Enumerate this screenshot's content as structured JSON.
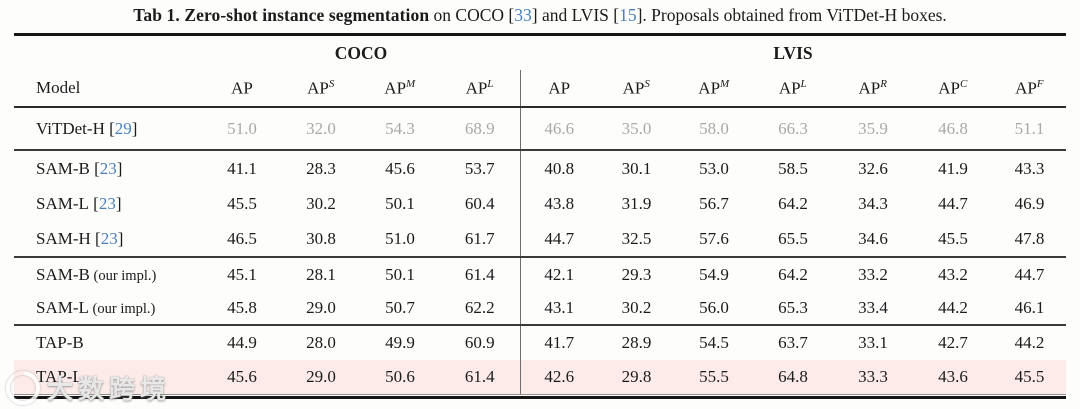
{
  "caption": {
    "bold": "Tab 1. Zero-shot instance segmentation",
    "seg1": " on COCO ",
    "cite1": "33",
    "seg2": " and LVIS ",
    "cite2": "15",
    "seg3": ". Proposals obtained from ViTDet-H boxes."
  },
  "table": {
    "brackets": {
      "open": "[",
      "close": "]"
    },
    "model_header": "Model",
    "groups": [
      {
        "label": "COCO",
        "span": 4
      },
      {
        "label": "LVIS",
        "span": 7
      }
    ],
    "columns": [
      {
        "base": "AP",
        "sup": ""
      },
      {
        "base": "AP",
        "sup": "S"
      },
      {
        "base": "AP",
        "sup": "M"
      },
      {
        "base": "AP",
        "sup": "L"
      },
      {
        "base": "AP",
        "sup": ""
      },
      {
        "base": "AP",
        "sup": "S"
      },
      {
        "base": "AP",
        "sup": "M"
      },
      {
        "base": "AP",
        "sup": "L"
      },
      {
        "base": "AP",
        "sup": "R"
      },
      {
        "base": "AP",
        "sup": "C"
      },
      {
        "base": "AP",
        "sup": "F"
      }
    ],
    "row_groups": [
      {
        "rows": [
          {
            "model": "ViTDet-H",
            "cite": "29",
            "muted": true,
            "values": [
              "51.0",
              "32.0",
              "54.3",
              "68.9",
              "46.6",
              "35.0",
              "58.0",
              "66.3",
              "35.9",
              "46.8",
              "51.1"
            ]
          }
        ]
      },
      {
        "rows": [
          {
            "model": "SAM-B",
            "cite": "23",
            "values": [
              "41.1",
              "28.3",
              "45.6",
              "53.7",
              "40.8",
              "30.1",
              "53.0",
              "58.5",
              "32.6",
              "41.9",
              "43.3"
            ]
          },
          {
            "model": "SAM-L",
            "cite": "23",
            "values": [
              "45.5",
              "30.2",
              "50.1",
              "60.4",
              "43.8",
              "31.9",
              "56.7",
              "64.2",
              "34.3",
              "44.7",
              "46.9"
            ]
          },
          {
            "model": "SAM-H",
            "cite": "23",
            "values": [
              "46.5",
              "30.8",
              "51.0",
              "61.7",
              "44.7",
              "32.5",
              "57.6",
              "65.5",
              "34.6",
              "45.5",
              "47.8"
            ]
          }
        ]
      },
      {
        "rows": [
          {
            "model": "SAM-B",
            "suffix": " (our impl.)",
            "values": [
              "45.1",
              "28.1",
              "50.1",
              "61.4",
              "42.1",
              "29.3",
              "54.9",
              "64.2",
              "33.2",
              "43.2",
              "44.7"
            ]
          },
          {
            "model": "SAM-L",
            "suffix": " (our impl.)",
            "values": [
              "45.8",
              "29.0",
              "50.7",
              "62.2",
              "43.1",
              "30.2",
              "56.0",
              "65.3",
              "33.4",
              "44.2",
              "46.1"
            ]
          }
        ]
      },
      {
        "rows": [
          {
            "model": "TAP-B",
            "values": [
              "44.9",
              "28.0",
              "49.9",
              "60.9",
              "41.7",
              "28.9",
              "54.5",
              "63.7",
              "33.1",
              "42.7",
              "44.2"
            ]
          },
          {
            "model": "TAP-L",
            "highlight": true,
            "values": [
              "45.6",
              "29.0",
              "50.6",
              "61.4",
              "42.6",
              "29.8",
              "55.5",
              "64.8",
              "33.3",
              "43.6",
              "45.5"
            ]
          }
        ]
      }
    ]
  },
  "watermark": {
    "text": "大数跨境"
  },
  "colors": {
    "cite": "#4a80bd",
    "muted": "#a9a9a9",
    "highlight_bg": "#fcebe8"
  }
}
